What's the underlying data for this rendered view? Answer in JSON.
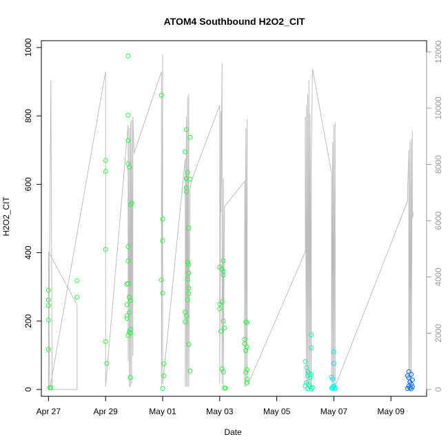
{
  "chart_data": {
    "type": "scatter",
    "title": "ATOM4 Southbound H2O2_CIT",
    "xlabel": "Date",
    "ylabel": "H2O2_CIT",
    "x_unit": "days",
    "xlim": [
      "2017-04-26T18:00",
      "2017-05-10T06:00"
    ],
    "ylim": [
      -20,
      1020
    ],
    "x_ticks": [
      {
        "date": "2017-04-27",
        "label": "Apr 27"
      },
      {
        "date": "2017-04-29",
        "label": "Apr 29"
      },
      {
        "date": "2017-05-01",
        "label": "May 01"
      },
      {
        "date": "2017-05-03",
        "label": "May 03"
      },
      {
        "date": "2017-05-05",
        "label": "May 05"
      },
      {
        "date": "2017-05-07",
        "label": "May 07"
      },
      {
        "date": "2017-05-09",
        "label": "May 09"
      }
    ],
    "y_ticks": [
      0,
      200,
      400,
      600,
      800,
      1000
    ],
    "y2_ticks": [
      0,
      2000,
      4000,
      6000,
      8000,
      10000,
      12000
    ],
    "y2lim": [
      -243,
      12400
    ],
    "color_scale": "time (green to blue)",
    "color_stops": [
      "#33ee44",
      "#00ffee",
      "#0066ff"
    ],
    "points": [
      {
        "x": "2017-04-27T00:00",
        "y": 290
      },
      {
        "x": "2017-04-27T00:00",
        "y": 262
      },
      {
        "x": "2017-04-27T00:00",
        "y": 245
      },
      {
        "x": "2017-04-27T00:00",
        "y": 203
      },
      {
        "x": "2017-04-27T00:00",
        "y": 117
      },
      {
        "x": "2017-04-27T01:00",
        "y": 5
      },
      {
        "x": "2017-04-27T02:00",
        "y": 5
      },
      {
        "x": "2017-04-28T00:00",
        "y": 318
      },
      {
        "x": "2017-04-28T00:00",
        "y": 270
      },
      {
        "x": "2017-04-29T00:00",
        "y": 670
      },
      {
        "x": "2017-04-29T00:00",
        "y": 638
      },
      {
        "x": "2017-04-29T00:00",
        "y": 410
      },
      {
        "x": "2017-04-29T00:00",
        "y": 140
      },
      {
        "x": "2017-04-29T01:00",
        "y": 76
      },
      {
        "x": "2017-04-29T19:00",
        "y": 975
      },
      {
        "x": "2017-04-29T19:00",
        "y": 802
      },
      {
        "x": "2017-04-29T19:00",
        "y": 728
      },
      {
        "x": "2017-04-29T19:00",
        "y": 660
      },
      {
        "x": "2017-04-29T20:00",
        "y": 650
      },
      {
        "x": "2017-04-29T21:00",
        "y": 540
      },
      {
        "x": "2017-04-29T22:00",
        "y": 545
      },
      {
        "x": "2017-04-29T19:00",
        "y": 418
      },
      {
        "x": "2017-04-29T19:00",
        "y": 376
      },
      {
        "x": "2017-04-29T18:00",
        "y": 308
      },
      {
        "x": "2017-04-29T19:00",
        "y": 310
      },
      {
        "x": "2017-04-29T20:00",
        "y": 270
      },
      {
        "x": "2017-04-29T21:00",
        "y": 260
      },
      {
        "x": "2017-04-29T18:00",
        "y": 248
      },
      {
        "x": "2017-04-29T20:00",
        "y": 225
      },
      {
        "x": "2017-04-29T18:00",
        "y": 215
      },
      {
        "x": "2017-04-29T18:00",
        "y": 208
      },
      {
        "x": "2017-04-29T21:00",
        "y": 175
      },
      {
        "x": "2017-04-29T20:00",
        "y": 168
      },
      {
        "x": "2017-04-29T21:00",
        "y": 165
      },
      {
        "x": "2017-04-29T19:00",
        "y": 158
      },
      {
        "x": "2017-04-29T21:00",
        "y": 35
      },
      {
        "x": "2017-04-30T23:00",
        "y": 860
      },
      {
        "x": "2017-05-01T00:00",
        "y": 498
      },
      {
        "x": "2017-05-01T00:00",
        "y": 435
      },
      {
        "x": "2017-04-30T23:00",
        "y": 320
      },
      {
        "x": "2017-05-01T00:00",
        "y": 282
      },
      {
        "x": "2017-05-01T01:00",
        "y": 75
      },
      {
        "x": "2017-05-01T01:00",
        "y": 40
      },
      {
        "x": "2017-05-01T00:00",
        "y": 3
      },
      {
        "x": "2017-05-01T20:00",
        "y": 760
      },
      {
        "x": "2017-05-01T19:00",
        "y": 695
      },
      {
        "x": "2017-05-01T23:00",
        "y": 737
      },
      {
        "x": "2017-05-01T21:00",
        "y": 635
      },
      {
        "x": "2017-05-01T20:00",
        "y": 617
      },
      {
        "x": "2017-05-01T23:00",
        "y": 615
      },
      {
        "x": "2017-05-01T20:00",
        "y": 590
      },
      {
        "x": "2017-05-01T20:00",
        "y": 578
      },
      {
        "x": "2017-05-01T22:00",
        "y": 472
      },
      {
        "x": "2017-05-01T21:00",
        "y": 372
      },
      {
        "x": "2017-05-01T22:00",
        "y": 366
      },
      {
        "x": "2017-05-01T22:00",
        "y": 340
      },
      {
        "x": "2017-05-01T21:00",
        "y": 322
      },
      {
        "x": "2017-05-01T22:00",
        "y": 296
      },
      {
        "x": "2017-05-01T22:00",
        "y": 280
      },
      {
        "x": "2017-05-01T21:00",
        "y": 262
      },
      {
        "x": "2017-05-01T19:00",
        "y": 226
      },
      {
        "x": "2017-05-01T20:00",
        "y": 215
      },
      {
        "x": "2017-05-01T19:00",
        "y": 198
      },
      {
        "x": "2017-05-01T22:00",
        "y": 132
      },
      {
        "x": "2017-05-01T23:00",
        "y": 54
      },
      {
        "x": "2017-05-03T03:00",
        "y": 376
      },
      {
        "x": "2017-05-03T00:00",
        "y": 358
      },
      {
        "x": "2017-05-03T02:00",
        "y": 352
      },
      {
        "x": "2017-05-03T03:00",
        "y": 345
      },
      {
        "x": "2017-05-03T03:00",
        "y": 335
      },
      {
        "x": "2017-05-03T02:00",
        "y": 256
      },
      {
        "x": "2017-05-03T00:00",
        "y": 250
      },
      {
        "x": "2017-05-03T00:00",
        "y": 236
      },
      {
        "x": "2017-05-03T03:00",
        "y": 200
      },
      {
        "x": "2017-05-03T04:00",
        "y": 180
      },
      {
        "x": "2017-05-03T01:00",
        "y": 170
      },
      {
        "x": "2017-05-03T02:00",
        "y": 60
      },
      {
        "x": "2017-05-03T03:00",
        "y": 52
      },
      {
        "x": "2017-05-03T04:00",
        "y": 4
      },
      {
        "x": "2017-05-03T05:00",
        "y": 4
      },
      {
        "x": "2017-05-03T22:00",
        "y": 198
      },
      {
        "x": "2017-05-03T23:00",
        "y": 195
      },
      {
        "x": "2017-05-03T21:00",
        "y": 146
      },
      {
        "x": "2017-05-03T21:00",
        "y": 134
      },
      {
        "x": "2017-05-03T23:00",
        "y": 124
      },
      {
        "x": "2017-05-03T22:00",
        "y": 114
      },
      {
        "x": "2017-05-03T23:00",
        "y": 58
      },
      {
        "x": "2017-05-03T22:00",
        "y": 50
      },
      {
        "x": "2017-05-03T23:00",
        "y": 30
      },
      {
        "x": "2017-05-03T23:00",
        "y": 20
      },
      {
        "x": "2017-05-06T05:00",
        "y": 160
      },
      {
        "x": "2017-05-06T05:00",
        "y": 122
      },
      {
        "x": "2017-05-06T00:00",
        "y": 82
      },
      {
        "x": "2017-05-06T01:00",
        "y": 64
      },
      {
        "x": "2017-05-06T02:00",
        "y": 52
      },
      {
        "x": "2017-05-06T03:00",
        "y": 48
      },
      {
        "x": "2017-05-06T05:00",
        "y": 44
      },
      {
        "x": "2017-05-06T02:00",
        "y": 40
      },
      {
        "x": "2017-05-06T04:00",
        "y": 35
      },
      {
        "x": "2017-05-06T01:00",
        "y": 20
      },
      {
        "x": "2017-05-06T03:00",
        "y": 14
      },
      {
        "x": "2017-05-06T00:00",
        "y": 10
      },
      {
        "x": "2017-05-06T04:00",
        "y": 8
      },
      {
        "x": "2017-05-06T06:00",
        "y": 6
      },
      {
        "x": "2017-05-06T02:00",
        "y": 3
      },
      {
        "x": "2017-05-06T05:00",
        "y": 2
      },
      {
        "x": "2017-05-07T00:00",
        "y": 110
      },
      {
        "x": "2017-05-07T00:00",
        "y": 76
      },
      {
        "x": "2017-05-06T22:00",
        "y": 36
      },
      {
        "x": "2017-05-06T23:00",
        "y": 30
      },
      {
        "x": "2017-05-07T00:00",
        "y": 10
      },
      {
        "x": "2017-05-06T23:00",
        "y": 8
      },
      {
        "x": "2017-05-07T01:00",
        "y": 6
      },
      {
        "x": "2017-05-06T22:00",
        "y": 4
      },
      {
        "x": "2017-05-06T23:00",
        "y": 3
      },
      {
        "x": "2017-05-07T01:00",
        "y": 2
      },
      {
        "x": "2017-05-09T15:00",
        "y": 52
      },
      {
        "x": "2017-05-09T14:00",
        "y": 40
      },
      {
        "x": "2017-05-09T17:00",
        "y": 44
      },
      {
        "x": "2017-05-09T15:00",
        "y": 34
      },
      {
        "x": "2017-05-09T18:00",
        "y": 28
      },
      {
        "x": "2017-05-09T16:00",
        "y": 22
      },
      {
        "x": "2017-05-09T17:00",
        "y": 15
      },
      {
        "x": "2017-05-09T15:00",
        "y": 10
      },
      {
        "x": "2017-05-09T18:00",
        "y": 8
      },
      {
        "x": "2017-05-09T16:00",
        "y": 5
      },
      {
        "x": "2017-05-09T14:00",
        "y": 3
      },
      {
        "x": "2017-05-09T17:00",
        "y": 2
      }
    ],
    "y2_series": {
      "x": [
        "2017-04-27T00:00",
        "2017-04-27T00:00",
        "2017-04-27T02:00",
        "2017-04-27T03:00",
        "2017-04-27T03:00",
        "2017-04-28T00:00",
        "2017-04-28T00:00",
        "2017-04-28T00:00",
        "2017-04-27T00:00",
        "2017-04-27T01:00",
        "2017-04-29T00:00",
        "2017-04-29T00:00",
        "2017-04-29T00:00",
        "2017-04-29T19:00",
        "2017-04-29T19:00",
        "2017-04-29T19:00",
        "2017-04-29T20:00",
        "2017-04-29T20:00",
        "2017-04-29T21:00",
        "2017-04-29T21:00",
        "2017-04-29T22:00",
        "2017-04-29T22:00",
        "2017-04-29T23:00",
        "2017-04-29T23:00",
        "2017-04-30T00:00",
        "2017-04-30T23:00",
        "2017-04-30T23:00",
        "2017-05-01T00:00",
        "2017-05-01T00:00",
        "2017-05-01T01:00",
        "2017-05-01T19:00",
        "2017-05-01T19:00",
        "2017-05-01T20:00",
        "2017-05-01T20:00",
        "2017-05-01T21:00",
        "2017-05-01T21:00",
        "2017-05-01T22:00",
        "2017-05-01T22:00",
        "2017-05-01T23:00",
        "2017-05-02T00:00",
        "2017-05-03T00:00",
        "2017-05-03T00:00",
        "2017-05-03T01:00",
        "2017-05-03T01:00",
        "2017-05-03T02:00",
        "2017-05-03T02:00",
        "2017-05-03T03:00",
        "2017-05-03T03:00",
        "2017-05-03T04:00",
        "2017-05-03T21:00",
        "2017-05-03T21:00",
        "2017-05-03T22:00",
        "2017-05-03T22:00",
        "2017-05-03T23:00",
        "2017-05-03T23:00",
        "2017-05-04T00:00",
        "2017-05-06T00:00",
        "2017-05-06T00:00",
        "2017-05-06T01:00",
        "2017-05-06T01:00",
        "2017-05-06T02:00",
        "2017-05-06T02:00",
        "2017-05-06T03:00",
        "2017-05-06T03:00",
        "2017-05-06T04:00",
        "2017-05-06T04:00",
        "2017-05-06T05:00",
        "2017-05-06T05:00",
        "2017-05-06T06:00",
        "2017-05-06T22:00",
        "2017-05-06T22:00",
        "2017-05-06T23:00",
        "2017-05-06T23:00",
        "2017-05-07T00:00",
        "2017-05-07T00:00",
        "2017-05-07T01:00",
        "2017-05-07T01:00",
        "2017-05-09T14:00",
        "2017-05-09T14:00",
        "2017-05-09T15:00",
        "2017-05-09T15:00",
        "2017-05-09T16:00",
        "2017-05-09T16:00",
        "2017-05-09T17:00",
        "2017-05-09T17:00",
        "2017-05-09T18:00",
        "2017-05-09T18:00",
        "2017-05-09T19:00"
      ],
      "y": [
        4900,
        0,
        11000,
        1300,
        0,
        0,
        2900,
        3000,
        4900,
        0,
        11300,
        100,
        100,
        9400,
        1000,
        9400,
        100,
        9300,
        100,
        9500,
        200,
        9600,
        1200,
        9700,
        8400,
        11300,
        100,
        11900,
        200,
        600,
        8200,
        100,
        9700,
        100,
        10400,
        100,
        10500,
        100,
        7100,
        7400,
        10100,
        200,
        9900,
        6300,
        11600,
        200,
        7500,
        100,
        6500,
        7400,
        100,
        9300,
        100,
        9600,
        300,
        200,
        4900,
        9700,
        100,
        10100,
        200,
        10500,
        100,
        11000,
        200,
        9800,
        100,
        8000,
        11400,
        7700,
        300,
        8800,
        100,
        9400,
        100,
        9500,
        100,
        6700,
        7000,
        8500,
        100,
        8800,
        200,
        8900,
        100,
        9200,
        6100,
        6300
      ]
    }
  }
}
